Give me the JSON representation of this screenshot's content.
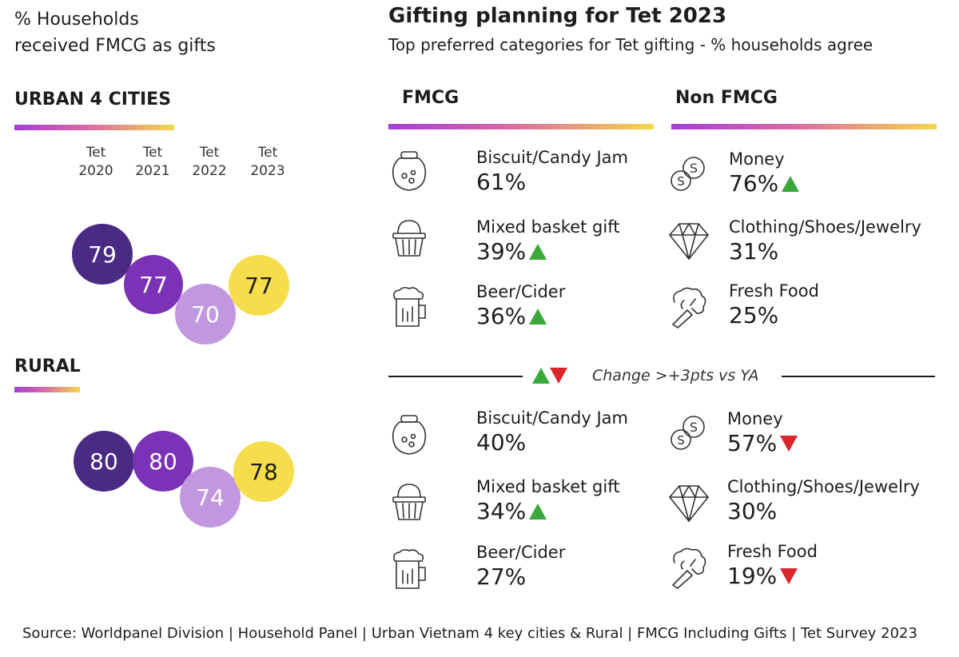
{
  "left": {
    "title_line1": "% Households",
    "title_line2": "received FMCG as gifts",
    "urban_label": "URBAN 4 CITIES",
    "rural_label": "RURAL",
    "years": [
      {
        "line1": "Tet",
        "line2": "2020"
      },
      {
        "line1": "Tet",
        "line2": "2021"
      },
      {
        "line1": "Tet",
        "line2": "2022"
      },
      {
        "line1": "Tet",
        "line2": "2023"
      }
    ]
  },
  "chart_data": {
    "type": "bubble-series",
    "title": "% Households received FMCG as gifts",
    "categories": [
      "Tet 2020",
      "Tet 2021",
      "Tet 2022",
      "Tet 2023"
    ],
    "series": [
      {
        "name": "URBAN 4 CITIES",
        "values": [
          79,
          77,
          70,
          77
        ]
      },
      {
        "name": "RURAL",
        "values": [
          80,
          80,
          74,
          78
        ]
      }
    ],
    "colors": [
      "#4a2a82",
      "#7b32b6",
      "#c198e0",
      "#f5dd4b"
    ]
  },
  "right": {
    "title": "Gifting planning for Tet 2023",
    "subtitle": "Top preferred categories for Tet gifting - % households agree",
    "fmcg_head": "FMCG",
    "nonfmcg_head": "Non FMCG",
    "legend": "Change >+3pts vs YA",
    "urban": {
      "fmcg": [
        {
          "icon": "jar-icon",
          "label": "Biscuit/Candy Jam",
          "value": "61%",
          "change": "none"
        },
        {
          "icon": "basket-icon",
          "label": "Mixed basket gift",
          "value": "39%",
          "change": "up"
        },
        {
          "icon": "beer-icon",
          "label": "Beer/Cider",
          "value": "36%",
          "change": "up"
        }
      ],
      "nonfmcg": [
        {
          "icon": "coins-icon",
          "label": "Money",
          "value": "76%",
          "change": "up"
        },
        {
          "icon": "diamond-icon",
          "label": "Clothing/Shoes/Jewelry",
          "value": "31%",
          "change": "none"
        },
        {
          "icon": "broccoli-icon",
          "label": "Fresh Food",
          "value": "25%",
          "change": "none"
        }
      ]
    },
    "rural": {
      "fmcg": [
        {
          "icon": "jar-icon",
          "label": "Biscuit/Candy Jam",
          "value": "40%",
          "change": "none"
        },
        {
          "icon": "basket-icon",
          "label": "Mixed basket gift",
          "value": "34%",
          "change": "up"
        },
        {
          "icon": "beer-icon",
          "label": "Beer/Cider",
          "value": "27%",
          "change": "none"
        }
      ],
      "nonfmcg": [
        {
          "icon": "coins-icon",
          "label": "Money",
          "value": "57%",
          "change": "down"
        },
        {
          "icon": "diamond-icon",
          "label": "Clothing/Shoes/Jewelry",
          "value": "30%",
          "change": "none"
        },
        {
          "icon": "broccoli-icon",
          "label": "Fresh Food",
          "value": "19%",
          "change": "down"
        }
      ]
    },
    "up_color": "#3aa83a",
    "down_color": "#d8262b"
  },
  "source": "Source: Worldpanel Division | Household Panel | Urban Vietnam 4 key cities & Rural | FMCG Including Gifts | Tet Survey 2023"
}
